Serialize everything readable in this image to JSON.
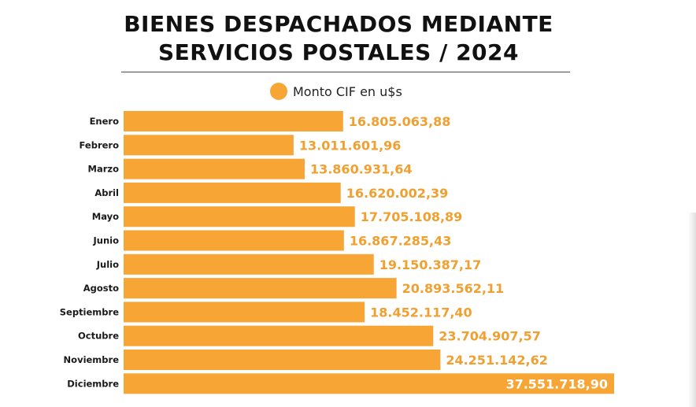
{
  "chart_data": {
    "type": "bar",
    "orientation": "horizontal",
    "title_lines": [
      "BIENES DESPACHADOS MEDIANTE",
      "SERVICIOS POSTALES / 2024"
    ],
    "legend": "Monto CIF en u$s",
    "legend_position": "top",
    "categories": [
      "Enero",
      "Febrero",
      "Marzo",
      "Abril",
      "Mayo",
      "Junio",
      "Julio",
      "Agosto",
      "Septiembre",
      "Octubre",
      "Noviembre",
      "Diciembre"
    ],
    "values": [
      16805063.88,
      13011601.96,
      13860931.64,
      16620002.39,
      17705108.89,
      16867285.43,
      19150387.17,
      20893562.11,
      18452117.4,
      23704907.57,
      24251142.62,
      37551718.9
    ],
    "value_labels": [
      "16.805.063,88",
      "13.011.601,96",
      "13.860.931,64",
      "16.620.002,39",
      "17.705.108,89",
      "16.867.285,43",
      "19.150.387,17",
      "20.893.562,11",
      "18.452.117,40",
      "23.704.907,57",
      "24.251.142,62",
      "37.551.718,90"
    ],
    "xlim": [
      0,
      37551718.9
    ],
    "grid": false,
    "bar_color": "#f7a535",
    "label_color": "#f0a030",
    "inside_label_color": "#ffffff"
  }
}
